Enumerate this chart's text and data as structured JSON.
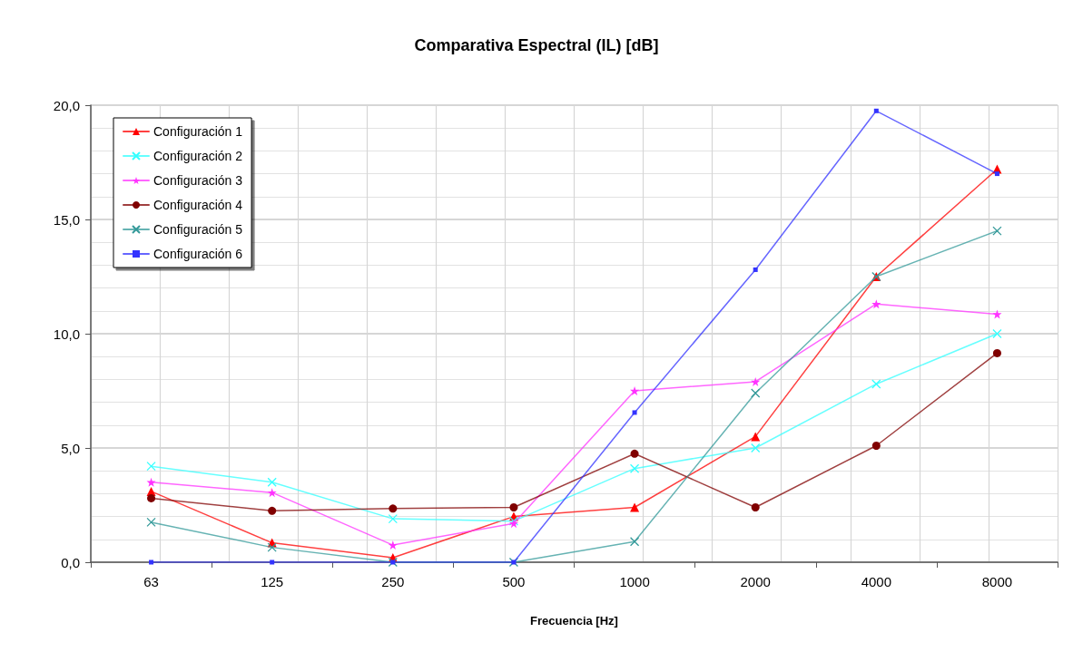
{
  "chart_data": {
    "type": "line",
    "title": "Comparativa Espectral (IL) [dB]",
    "xlabel": "Frecuencia [Hz]",
    "categories": [
      "63",
      "125",
      "250",
      "500",
      "1000",
      "2000",
      "4000",
      "8000"
    ],
    "series": [
      {
        "name": "Configuración 1",
        "color": "#ff0000",
        "marker": "triangle",
        "values": [
          3.1,
          0.85,
          0.2,
          2.0,
          2.4,
          5.5,
          12.5,
          17.2
        ]
      },
      {
        "name": "Configuración 2",
        "color": "#33ffff",
        "marker": "cross",
        "values": [
          4.2,
          3.5,
          1.9,
          1.8,
          4.1,
          5.0,
          7.8,
          10.0
        ]
      },
      {
        "name": "Configuración 3",
        "color": "#ff33ff",
        "marker": "star",
        "values": [
          3.5,
          3.05,
          0.75,
          1.7,
          7.5,
          7.9,
          11.3,
          10.85
        ]
      },
      {
        "name": "Configuración 4",
        "color": "#800000",
        "marker": "circle",
        "values": [
          2.8,
          2.25,
          2.35,
          2.4,
          4.75,
          2.4,
          5.1,
          9.15
        ]
      },
      {
        "name": "Configuración 5",
        "color": "#339999",
        "marker": "cross",
        "values": [
          1.75,
          0.65,
          0.0,
          0.0,
          0.9,
          7.4,
          12.5,
          14.5
        ]
      },
      {
        "name": "Configuración 6",
        "color": "#3333ff",
        "marker": "square",
        "values": [
          0.0,
          0.0,
          0.0,
          0.0,
          6.55,
          12.8,
          19.75,
          17.0
        ]
      }
    ],
    "ylim": [
      0,
      20
    ],
    "yticks": [
      {
        "value": 0,
        "label": "0,0"
      },
      {
        "value": 5,
        "label": "5,0"
      },
      {
        "value": 10,
        "label": "10,0"
      },
      {
        "value": 15,
        "label": "15,0"
      },
      {
        "value": 20,
        "label": "20,0"
      }
    ],
    "grid": true,
    "legend": "top left"
  }
}
